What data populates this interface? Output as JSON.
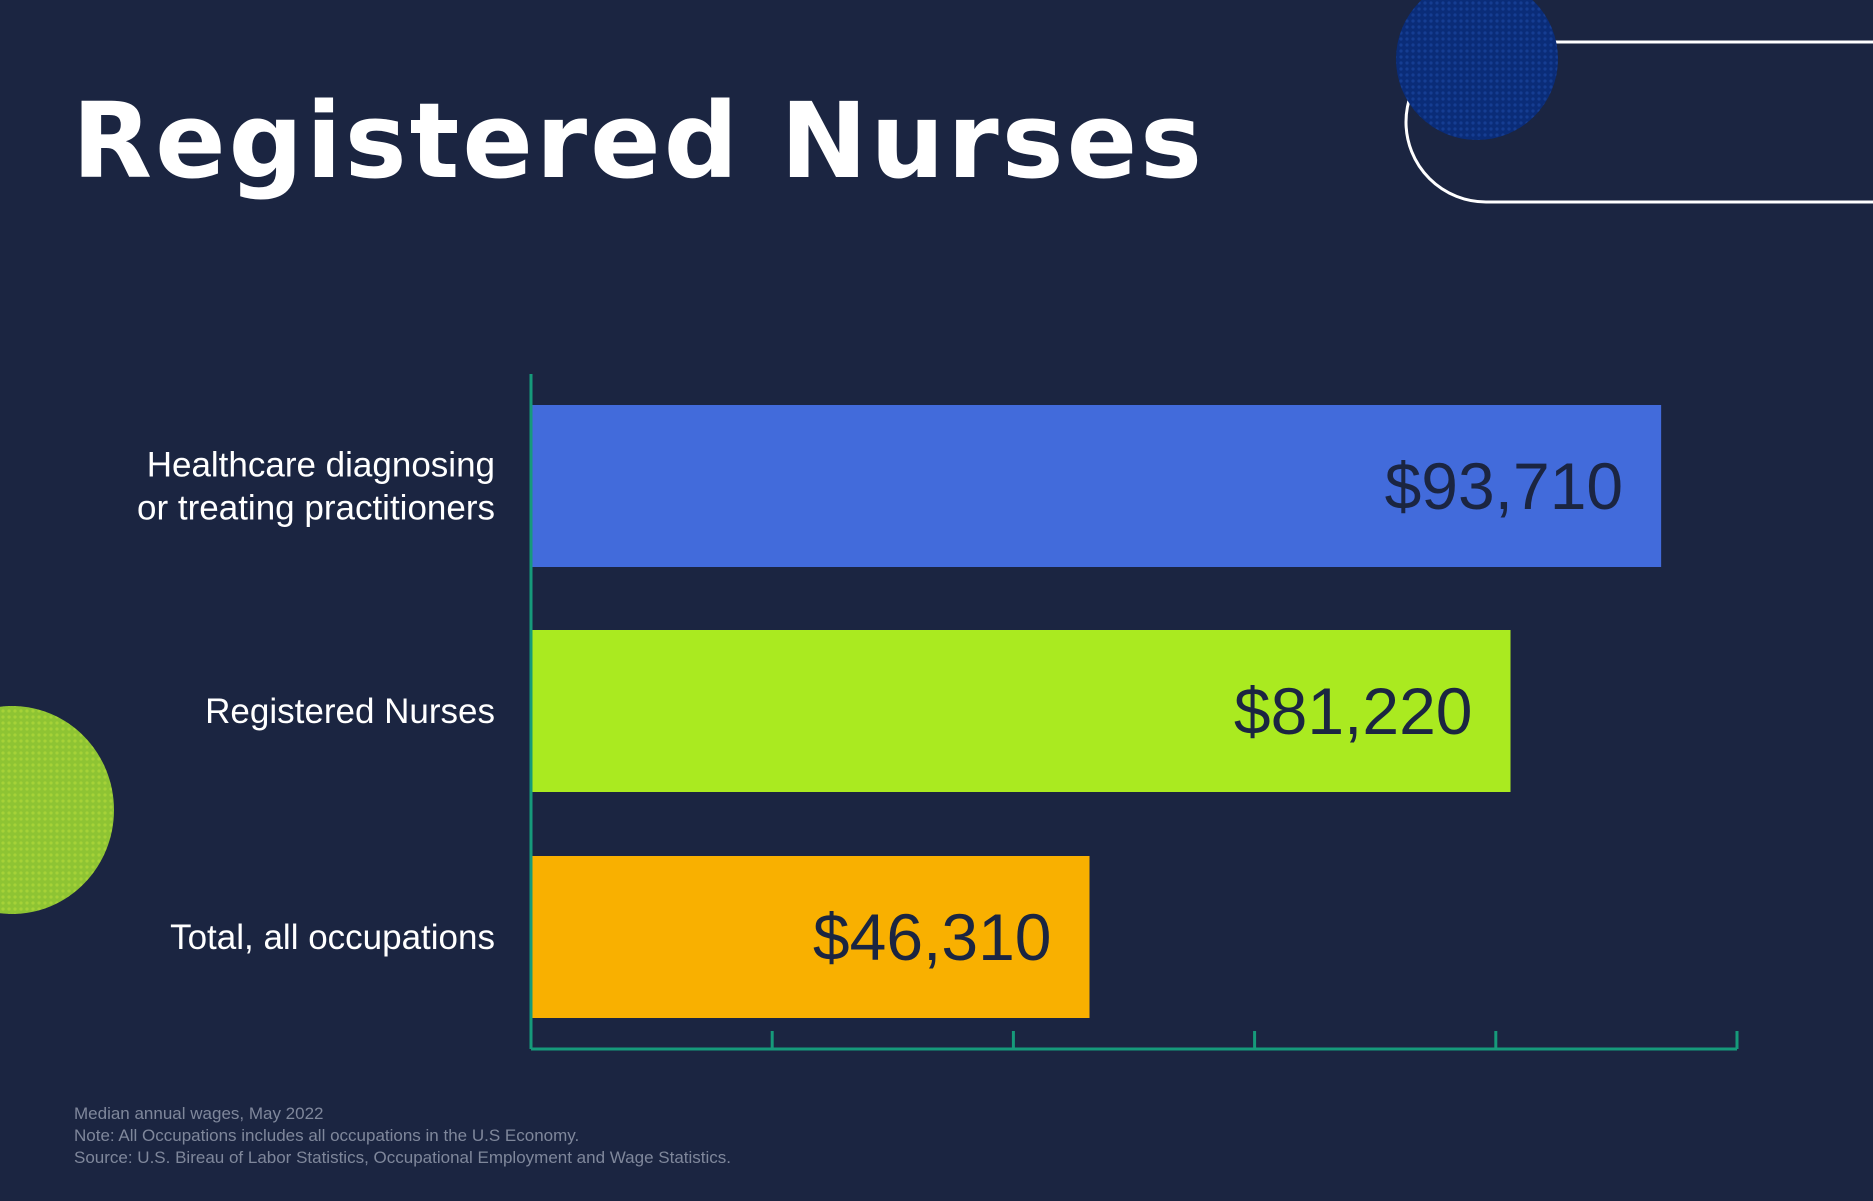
{
  "title": "Registered Nurses",
  "colors": {
    "background": "#1b2541",
    "axis": "#169a7a",
    "bar_colors": [
      "#426bdb",
      "#aaea20",
      "#f9b000"
    ],
    "value_text": "#1b2541",
    "decor_blue": "#0a2c78",
    "decor_green": "#8ec433"
  },
  "chart_data": {
    "type": "bar",
    "orientation": "horizontal",
    "categories": [
      [
        "Healthcare diagnosing",
        "or treating practitioners"
      ],
      [
        "Registered Nurses"
      ],
      [
        "Total, all occupations"
      ]
    ],
    "values": [
      93710,
      81220,
      46310
    ],
    "value_labels": [
      "$93,710",
      "$81,220",
      "$46,310"
    ],
    "xlim": [
      0,
      100000
    ],
    "x_tick_count": 5,
    "xlabel": "",
    "ylabel": "",
    "grid": false,
    "legend": "none"
  },
  "footnotes": [
    "Median annual wages, May 2022",
    "Note: All Occupations includes all occupations in the U.S Economy.",
    "Source: U.S. Bireau of Labor Statistics, Occupational Employment and Wage Statistics."
  ]
}
